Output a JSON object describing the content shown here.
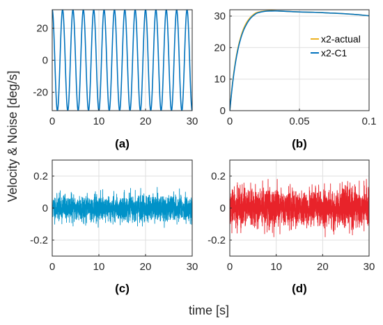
{
  "figure": {
    "ylabel": "Velocity & Noise [deg/s]",
    "xlabel": "time [s]"
  },
  "chart_data": [
    {
      "id": "a",
      "label": "(a)",
      "type": "line",
      "xlim": [
        0,
        30
      ],
      "ylim": [
        -31.5,
        31.5
      ],
      "xticks": [
        0,
        10,
        20,
        30
      ],
      "yticks": [
        -20,
        0,
        20
      ],
      "grid": true,
      "series": [
        {
          "color": "#0072BD",
          "kind": "sine",
          "amplitude": 31.5,
          "cycles": 13.5,
          "points": 1400,
          "phase_start_deg": 90
        }
      ]
    },
    {
      "id": "b",
      "label": "(b)",
      "type": "line",
      "xlim": [
        0,
        0.1
      ],
      "ylim": [
        0,
        32
      ],
      "xticks": [
        0,
        0.05,
        0.1
      ],
      "xtick_labels": [
        "0",
        "0.05",
        "0.1"
      ],
      "yticks": [
        0,
        10,
        20,
        30
      ],
      "grid": true,
      "legend": {
        "position": "right-middle"
      },
      "series": [
        {
          "name": "x2-actual",
          "color": "#EDB120",
          "x": [
            0,
            0.002,
            0.004,
            0.006,
            0.008,
            0.01,
            0.012,
            0.014,
            0.016,
            0.018,
            0.02,
            0.025,
            0.03,
            0.035,
            0.04,
            0.05,
            0.06,
            0.07,
            0.08,
            0.09,
            0.1
          ],
          "y": [
            0,
            9,
            15.5,
            20.2,
            23.6,
            26.1,
            27.9,
            29.2,
            30.1,
            30.8,
            31.2,
            31.6,
            31.7,
            31.6,
            31.5,
            31.3,
            31.2,
            31.0,
            30.8,
            30.5,
            30.1
          ]
        },
        {
          "name": "x2-C1",
          "color": "#0072BD",
          "x": [
            0,
            0.002,
            0.004,
            0.006,
            0.008,
            0.01,
            0.012,
            0.014,
            0.016,
            0.018,
            0.02,
            0.025,
            0.03,
            0.035,
            0.04,
            0.05,
            0.06,
            0.07,
            0.08,
            0.09,
            0.1
          ],
          "y": [
            0,
            8.6,
            15.0,
            19.7,
            23.1,
            25.6,
            27.4,
            28.8,
            29.8,
            30.5,
            31.0,
            31.5,
            31.6,
            31.6,
            31.5,
            31.3,
            31.2,
            31.0,
            30.8,
            30.5,
            30.1
          ]
        }
      ]
    },
    {
      "id": "c",
      "label": "(c)",
      "type": "line",
      "xlim": [
        0,
        30
      ],
      "ylim": [
        -0.3,
        0.3
      ],
      "xticks": [
        0,
        10,
        20,
        30
      ],
      "yticks": [
        -0.2,
        0,
        0.2
      ],
      "grid": true,
      "series": [
        {
          "color": "#0092C8",
          "kind": "noise",
          "std": 0.04,
          "max_abs": 0.13,
          "points": 1800,
          "seed": 11
        }
      ]
    },
    {
      "id": "d",
      "label": "(d)",
      "type": "line",
      "xlim": [
        0,
        30
      ],
      "ylim": [
        -0.3,
        0.3
      ],
      "xticks": [
        0,
        10,
        20,
        30
      ],
      "yticks": [
        -0.2,
        0,
        0.2
      ],
      "grid": true,
      "series": [
        {
          "color": "#E8232A",
          "kind": "noise",
          "std": 0.06,
          "max_abs": 0.18,
          "points": 1800,
          "seed": 29,
          "initial_spike": 0.3
        }
      ]
    }
  ]
}
